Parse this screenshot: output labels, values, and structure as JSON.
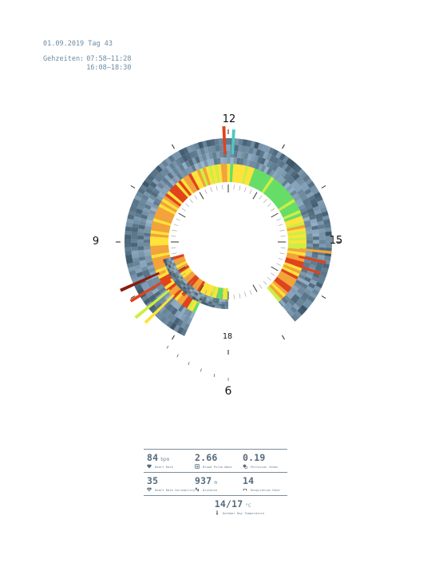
{
  "header": {
    "date_line": "01.09.2019 Tag 43",
    "times_label": "Gehzeiten:",
    "times": [
      "07:58–11:28",
      "16:08–18:30"
    ]
  },
  "clock": {
    "labels": {
      "h12": "12",
      "h15": "15",
      "h18": "18",
      "h9": "9",
      "h6": "6"
    }
  },
  "colors": {
    "text": "#546b7d",
    "header": "#6b8aa3",
    "blue_light": "#a9c9e3",
    "blue_dark": "#3b5466",
    "green": "#66dd66",
    "yellow_green": "#ccee44",
    "yellow": "#ffe23a",
    "orange": "#f2a33a",
    "red": "#e0431c",
    "dark_red": "#8a1c10",
    "teal": "#4fc9c1"
  },
  "chart_data": {
    "type": "radial",
    "description_units": "clock hours; inner bands = heart-rate colour, outer rings = blood pulse wave shading",
    "walking_periods": [
      {
        "start": "07:58",
        "end": "11:28"
      },
      {
        "start": "16:08",
        "end": "18:30"
      }
    ],
    "hour_labels": [
      "12",
      "15",
      "18",
      "9",
      "6"
    ]
  },
  "stats": {
    "heart_rate": {
      "value": "84",
      "unit": "bpm",
      "label": "Heart Rate",
      "icon": "heart-icon"
    },
    "blood_pulse_wave": {
      "value": "2.66",
      "unit": "",
      "label": "Blood Pulse Wave",
      "icon": "pulse-wave-icon"
    },
    "perfusion_index": {
      "value": "0.19",
      "unit": "",
      "label": "Perfusion Index",
      "icon": "perfusion-icon"
    },
    "hrv": {
      "value": "35",
      "unit": "",
      "label": "Heart Rate Variability",
      "icon": "heart-pulse-icon"
    },
    "distance": {
      "value": "937",
      "unit": "m",
      "label": "Distance",
      "icon": "footsteps-icon"
    },
    "respiration_rate": {
      "value": "14",
      "unit": "",
      "label": "Respiration Rate",
      "icon": "lungs-icon"
    },
    "temperature": {
      "value": "14/17",
      "unit": "°C",
      "label": "Outdoor Day Temperature",
      "icon": "thermometer-icon"
    }
  }
}
